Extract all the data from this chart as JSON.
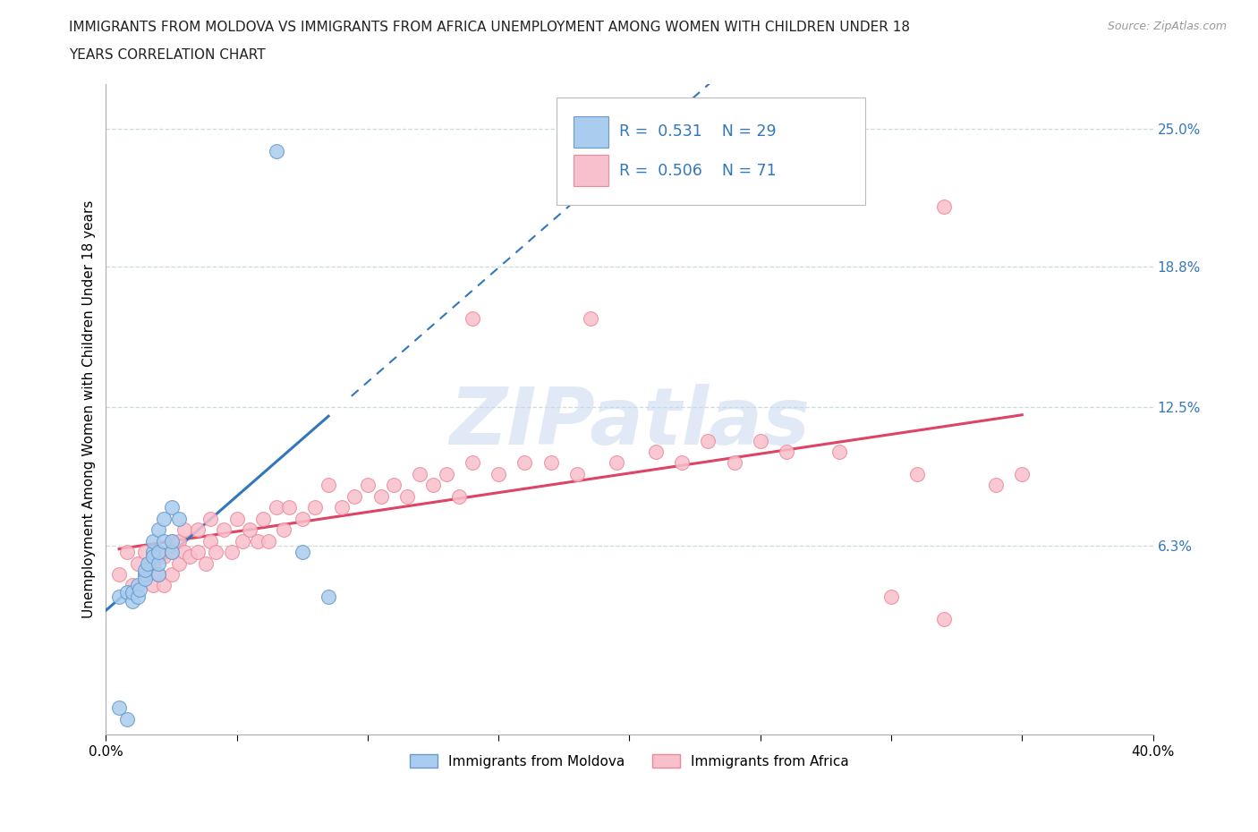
{
  "title_line1": "IMMIGRANTS FROM MOLDOVA VS IMMIGRANTS FROM AFRICA UNEMPLOYMENT AMONG WOMEN WITH CHILDREN UNDER 18",
  "title_line2": "YEARS CORRELATION CHART",
  "source_text": "Source: ZipAtlas.com",
  "ylabel": "Unemployment Among Women with Children Under 18 years",
  "xlim": [
    0.0,
    0.4
  ],
  "ylim": [
    -0.022,
    0.27
  ],
  "yticks_right": [
    0.063,
    0.125,
    0.188,
    0.25
  ],
  "yticks_right_labels": [
    "6.3%",
    "12.5%",
    "18.8%",
    "25.0%"
  ],
  "legend_R1": "0.531",
  "legend_N1": "29",
  "legend_R2": "0.506",
  "legend_N2": "71",
  "moldova_color": "#aaccee",
  "moldova_edge": "#6699cc",
  "africa_color": "#f8c0cc",
  "africa_edge": "#ee8899",
  "moldova_line_color": "#3377bb",
  "africa_line_color": "#dd4466",
  "watermark_color": "#c8d8ee",
  "grid_color": "#ccdddd",
  "moldova_x": [
    0.005,
    0.008,
    0.01,
    0.01,
    0.012,
    0.012,
    0.013,
    0.015,
    0.015,
    0.015,
    0.016,
    0.018,
    0.018,
    0.018,
    0.02,
    0.02,
    0.02,
    0.02,
    0.022,
    0.022,
    0.025,
    0.025,
    0.025,
    0.028,
    0.005,
    0.008,
    0.065,
    0.075,
    0.085
  ],
  "moldova_y": [
    0.04,
    0.042,
    0.038,
    0.042,
    0.045,
    0.04,
    0.043,
    0.05,
    0.048,
    0.052,
    0.055,
    0.06,
    0.058,
    0.065,
    0.05,
    0.055,
    0.06,
    0.07,
    0.065,
    0.075,
    0.06,
    0.065,
    0.08,
    0.075,
    -0.01,
    -0.015,
    0.24,
    0.06,
    0.04
  ],
  "africa_x": [
    0.005,
    0.008,
    0.01,
    0.012,
    0.015,
    0.015,
    0.018,
    0.018,
    0.02,
    0.02,
    0.022,
    0.022,
    0.025,
    0.025,
    0.025,
    0.028,
    0.028,
    0.03,
    0.03,
    0.032,
    0.035,
    0.035,
    0.038,
    0.04,
    0.04,
    0.042,
    0.045,
    0.048,
    0.05,
    0.052,
    0.055,
    0.058,
    0.06,
    0.062,
    0.065,
    0.068,
    0.07,
    0.075,
    0.08,
    0.085,
    0.09,
    0.095,
    0.1,
    0.105,
    0.11,
    0.115,
    0.12,
    0.125,
    0.13,
    0.135,
    0.14,
    0.15,
    0.16,
    0.17,
    0.18,
    0.185,
    0.195,
    0.21,
    0.22,
    0.23,
    0.24,
    0.25,
    0.26,
    0.28,
    0.3,
    0.31,
    0.32,
    0.34,
    0.35,
    0.14,
    0.32
  ],
  "africa_y": [
    0.05,
    0.06,
    0.045,
    0.055,
    0.05,
    0.06,
    0.045,
    0.055,
    0.05,
    0.06,
    0.045,
    0.058,
    0.05,
    0.06,
    0.065,
    0.055,
    0.065,
    0.06,
    0.07,
    0.058,
    0.06,
    0.07,
    0.055,
    0.065,
    0.075,
    0.06,
    0.07,
    0.06,
    0.075,
    0.065,
    0.07,
    0.065,
    0.075,
    0.065,
    0.08,
    0.07,
    0.08,
    0.075,
    0.08,
    0.09,
    0.08,
    0.085,
    0.09,
    0.085,
    0.09,
    0.085,
    0.095,
    0.09,
    0.095,
    0.085,
    0.1,
    0.095,
    0.1,
    0.1,
    0.095,
    0.165,
    0.1,
    0.105,
    0.1,
    0.11,
    0.1,
    0.11,
    0.105,
    0.105,
    0.04,
    0.095,
    0.03,
    0.09,
    0.095,
    0.165,
    0.215
  ]
}
